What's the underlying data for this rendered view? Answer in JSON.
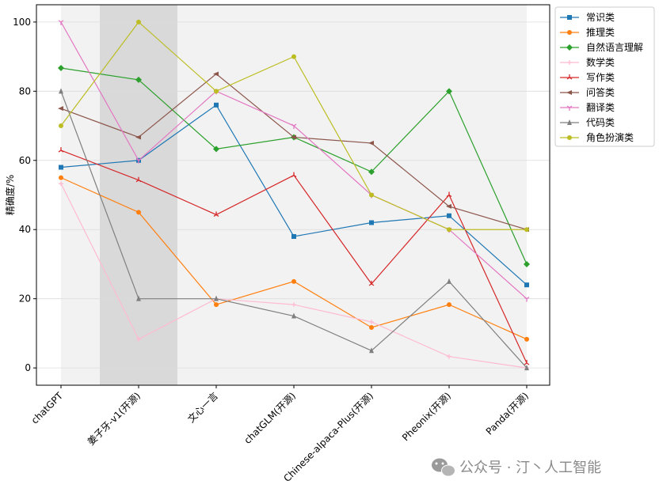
{
  "chart_data": {
    "type": "line",
    "title": "",
    "xlabel": "",
    "ylabel": "精确度/%",
    "ylim": [
      -5,
      105
    ],
    "yticks": [
      0,
      20,
      40,
      60,
      80,
      100
    ],
    "grid": true,
    "legend_position": "right",
    "categories": [
      "chatGPT",
      "姜子牙-v1(开源)",
      "文心一言",
      "chatGLM(开源)",
      "Chinese-alpaca-Plus(开源)",
      "Pheonix(开源)",
      "Panda(开源)"
    ],
    "highlighted_category": "姜子牙-v1(开源)",
    "series": [
      {
        "name": "常识类",
        "color": "#1f77b4",
        "marker": "square",
        "values": [
          58,
          60,
          76,
          38,
          42,
          44,
          24
        ]
      },
      {
        "name": "推理类",
        "color": "#ff7f0e",
        "marker": "circle",
        "values": [
          55,
          45,
          18.3,
          25,
          11.7,
          18.3,
          8.3
        ]
      },
      {
        "name": "自然语言理解",
        "color": "#2ca02c",
        "marker": "diamond",
        "values": [
          86.7,
          83.3,
          63.3,
          66.7,
          56.7,
          80,
          30
        ]
      },
      {
        "name": "数学类",
        "color": "#ffbbd0",
        "marker": "plus",
        "values": [
          53.3,
          8.3,
          20,
          18.3,
          13.3,
          3.3,
          0
        ]
      },
      {
        "name": "写作类",
        "color": "#d62728",
        "marker": "tri_up",
        "values": [
          62.9,
          54.3,
          44.3,
          55.7,
          24.3,
          50,
          1.4
        ]
      },
      {
        "name": "问答类",
        "color": "#8c564b",
        "marker": "triangle_left",
        "values": [
          75,
          66.7,
          85,
          66.7,
          65,
          46.7,
          40
        ]
      },
      {
        "name": "翻译类",
        "color": "#e377c2",
        "marker": "tri_down",
        "values": [
          100,
          60,
          80,
          70,
          50,
          40,
          20
        ]
      },
      {
        "name": "代码类",
        "color": "#7f7f7f",
        "marker": "triangle_up",
        "values": [
          80,
          20,
          20,
          15,
          5,
          25,
          0
        ]
      },
      {
        "name": "角色扮演类",
        "color": "#bcbd22",
        "marker": "circle",
        "values": [
          70,
          100,
          80,
          90,
          50,
          40,
          40
        ]
      }
    ]
  },
  "watermark": {
    "text": "公众号 · 汀丶人工智能",
    "icon": "wechat-icon"
  }
}
